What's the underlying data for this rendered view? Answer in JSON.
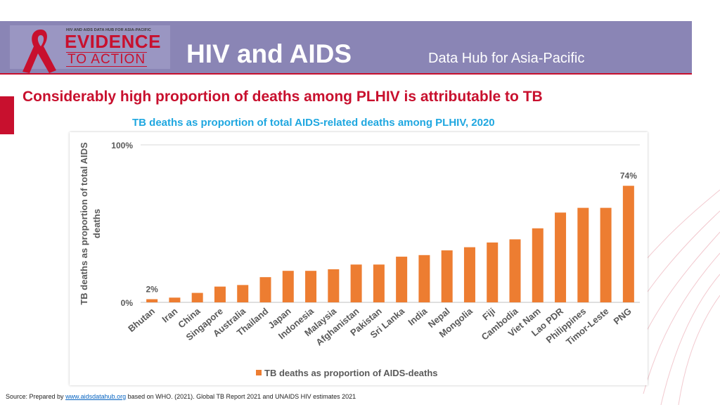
{
  "header": {
    "app_title": "HIV and AIDS",
    "app_subtitle": "Data Hub for Asia-Pacific",
    "logo": {
      "tagline": "HIV AND AIDS DATA HUB FOR ASIA-PACIFIC",
      "word1": "EVIDENCE",
      "word2": "TO ACTION"
    }
  },
  "page": {
    "title": "Considerably high proportion of deaths among PLHIV is attributable to TB"
  },
  "source": {
    "prefix": "Source: Prepared by ",
    "link": "www.aidsdatahub.org",
    "suffix": " based on WHO. (2021). Global TB Report 2021 and UNAIDS HIV estimates 2021"
  },
  "colors": {
    "brand_red": "#c8102e",
    "header_band": "#8a85b5",
    "bar": "#ed7d31",
    "chart_title": "#1fa7e0"
  },
  "chart_data": {
    "type": "bar",
    "title": "TB deaths as proportion of total AIDS-related deaths among PLHIV, 2020",
    "ylabel": "TB deaths as proportion of total AIDS deaths",
    "xlabel": "",
    "ylim": [
      0,
      100
    ],
    "ytick_labels": [
      "0%",
      "100%"
    ],
    "grid": true,
    "legend_position": "bottom",
    "categories": [
      "Bhutan",
      "Iran",
      "China",
      "Singapore",
      "Australia",
      "Thailand",
      "Japan",
      "Indonesia",
      "Malaysia",
      "Afghanistan",
      "Pakistan",
      "Sri Lanka",
      "India",
      "Nepal",
      "Mongolia",
      "Fiji",
      "Cambodia",
      "Viet Nam",
      "Lao PDR",
      "Philippines",
      "Timor-Leste",
      "PNG"
    ],
    "series": [
      {
        "name": "TB deaths as proportion of AIDS-deaths",
        "values": [
          2,
          3,
          6,
          10,
          11,
          16,
          20,
          20,
          21,
          24,
          24,
          29,
          30,
          33,
          35,
          38,
          40,
          47,
          57,
          60,
          60,
          74
        ]
      }
    ],
    "data_labels": [
      {
        "category": "Bhutan",
        "text": "2%"
      },
      {
        "category": "PNG",
        "text": "74%"
      }
    ]
  }
}
